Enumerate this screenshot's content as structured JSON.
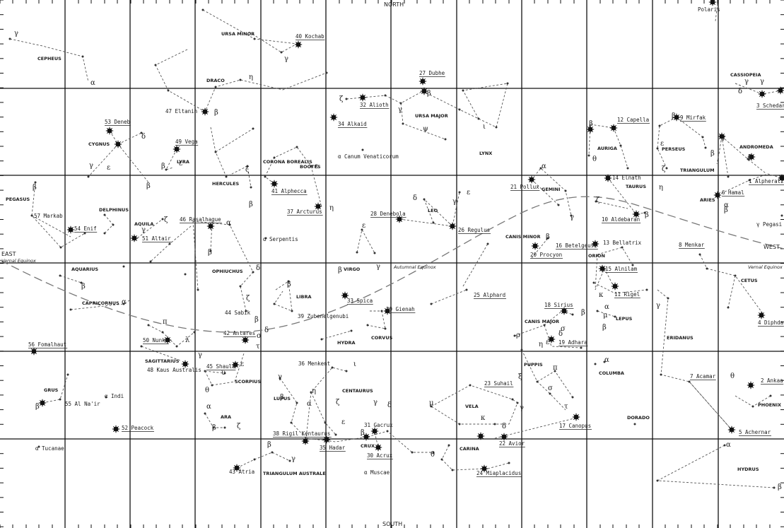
{
  "edges": {
    "north": "NORTH",
    "south": "SOUTH",
    "east": "EAST",
    "west": "WEST"
  },
  "equinoxes": {
    "vernal_east": "Vernal Equinox",
    "vernal_west": "Vernal Equinox",
    "autumnal": "Autumnal Equinox"
  },
  "constellations": [
    "CEPHEUS",
    "URSA MINOR",
    "DRACO",
    "CASSIOPEIA",
    "URSA MAJOR",
    "CYGNUS",
    "LYRA",
    "AURIGA",
    "PERSEUS",
    "ANDROMEDA",
    "TRIANGULUM",
    "LYNX",
    "CORONA BOREALIS",
    "BOOTES",
    "HERCULES",
    "GEMINI",
    "TAURUS",
    "ARIES",
    "PEGASUS",
    "DELPHINUS",
    "AQUILA",
    "LEO",
    "CANIS MINOR",
    "ORION",
    "OPHIUCHUS",
    "VIRGO",
    "AQUARIUS",
    "CAPRICORNUS",
    "LIBRA",
    "CETUS",
    "CANIS MAJOR",
    "LEPUS",
    "HYDRA",
    "CORVUS",
    "ERIDANUS",
    "SAGITTARIUS",
    "SCORPIUS",
    "PUPPIS",
    "COLUMBA",
    "CENTAURUS",
    "LUPUS",
    "VELA",
    "GRUS",
    "ARA",
    "PHOENIX",
    "CRUX",
    "CARINA",
    "DORADO",
    "HYDRUS",
    "TRIANGULUM AUSTRALE"
  ],
  "numbered_stars": [
    "1 Alpheratz",
    "2 Ankaa",
    "3 Schedar",
    "4 Diphda",
    "5 Achernar",
    "6 Hamal",
    "7 Acamar",
    "8 Menkar",
    "9 Mirfak",
    "10 Aldebaran",
    "11 Rigel",
    "12 Capella",
    "13 Bellatrix",
    "14 Elnath",
    "15 Alnilam",
    "16 Betelgeuse",
    "17 Canopus",
    "18 Sirius",
    "19 Adhara",
    "20 Procyon",
    "21 Pollux",
    "22 Avior",
    "23 Suhail",
    "24 Miaplacidus",
    "25 Alphard",
    "26 Regulus",
    "27 Dubhe",
    "28 Denebola",
    "29 Gienah",
    "30 Acrux",
    "31 Gacrux",
    "32 Alioth",
    "33 Spica",
    "34 Alkaid",
    "35 Hadar",
    "36 Menkent",
    "37 Arcturus",
    "38 Rigil Kentaurus",
    "39 Zubenelgenubi",
    "40 Kochab",
    "41 Alphecca",
    "42 Antares",
    "43 Atria",
    "44 Sabik",
    "45 Shaula",
    "46 Rasalhague",
    "47 Eltanin",
    "48 Kaus Australis",
    "49 Vega",
    "50 Nunki",
    "51 Altair",
    "52 Peacock",
    "53 Deneb",
    "54 Enif",
    "55 Al Na'ir",
    "56 Fomalhaut",
    "57 Markab"
  ],
  "other_stars": [
    "Polaris",
    "α Canum Venaticorum",
    "α Serpentis",
    "α Indi",
    "α Tucanae",
    "α Muscae",
    "γ Pegasi"
  ]
}
